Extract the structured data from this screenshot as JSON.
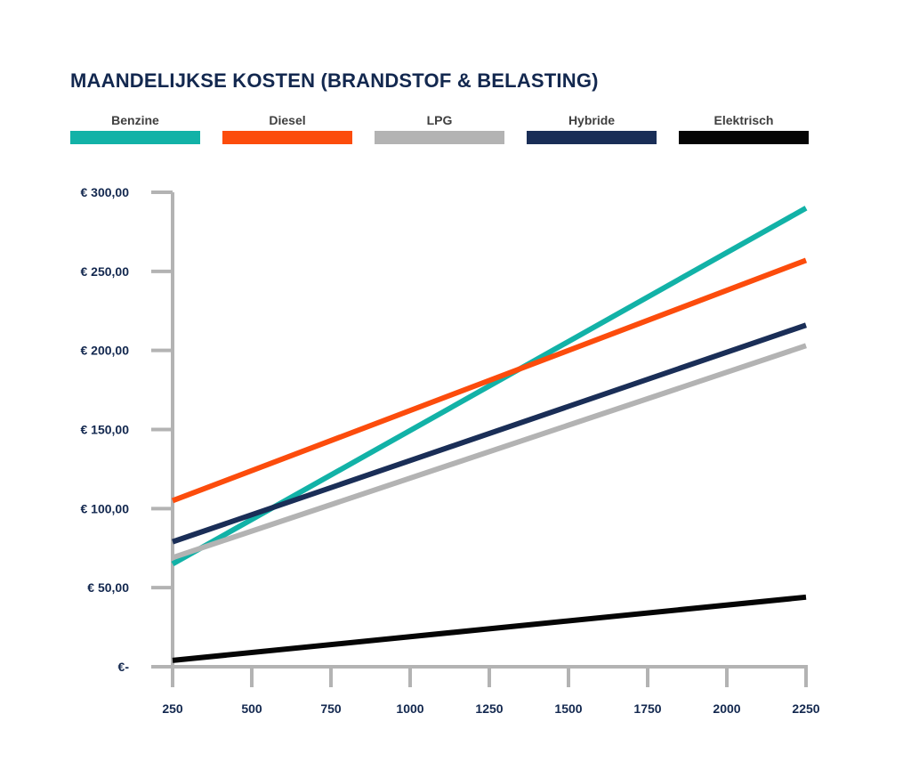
{
  "chart_data": {
    "type": "line",
    "title": "MAANDELIJKSE KOSTEN (BRANDSTOF & BELASTING)",
    "xlabel": "",
    "ylabel": "",
    "x": [
      250,
      2250
    ],
    "xlim": [
      250,
      2250
    ],
    "ylim": [
      0,
      300
    ],
    "x_ticks": [
      250,
      500,
      750,
      1000,
      1250,
      1500,
      1750,
      2000,
      2250
    ],
    "x_tick_labels": [
      "250",
      "500",
      "750",
      "1000",
      "1250",
      "1500",
      "1750",
      "2000",
      "2250"
    ],
    "y_ticks": [
      0,
      50,
      100,
      150,
      200,
      250,
      300
    ],
    "y_tick_labels": [
      "€-",
      "€ 50,00",
      "€ 100,00",
      "€ 150,00",
      "€ 200,00",
      "€ 250,00",
      "€ 300,00"
    ],
    "grid": false,
    "legend_position": "top",
    "series": [
      {
        "name": "Benzine",
        "color": "#12b2a7",
        "values": [
          65,
          290
        ]
      },
      {
        "name": "Diesel",
        "color": "#fc4c0c",
        "values": [
          105,
          257
        ]
      },
      {
        "name": "LPG",
        "color": "#b3b3b3",
        "values": [
          69,
          203
        ]
      },
      {
        "name": "Hybride",
        "color": "#1a2e57",
        "values": [
          79,
          216
        ]
      },
      {
        "name": "Elektrisch",
        "color": "#050505",
        "values": [
          4,
          44
        ]
      }
    ],
    "axis_color": "#b3b3b3"
  }
}
